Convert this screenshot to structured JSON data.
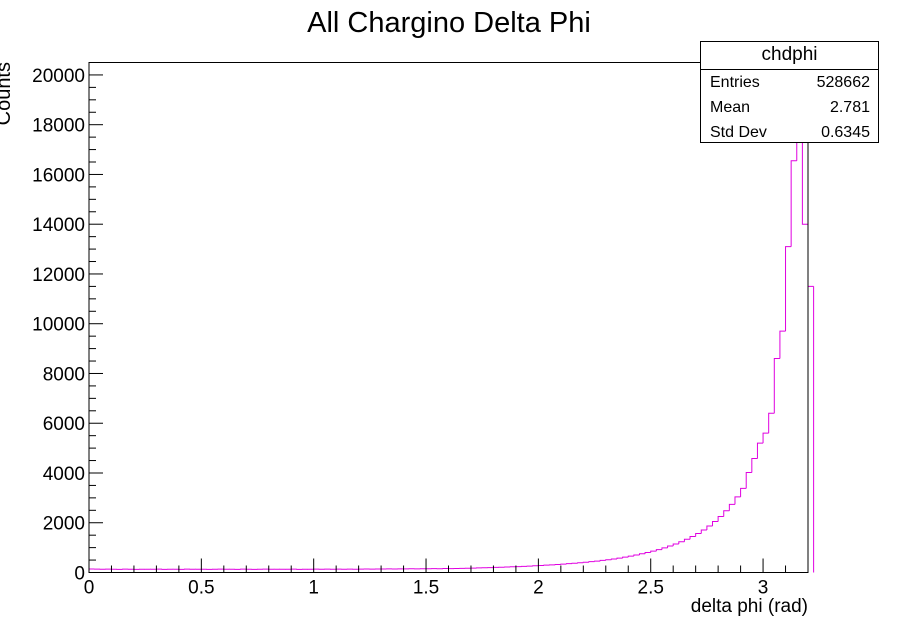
{
  "chart_data": {
    "type": "bar",
    "title": "All Chargino Delta Phi",
    "xlabel": "delta phi (rad)",
    "ylabel": "Counts",
    "xlim": [
      0,
      3.2
    ],
    "ylim": [
      0,
      20500
    ],
    "x_ticks": [
      "0",
      "0.5",
      "1",
      "1.5",
      "2",
      "2.5",
      "3"
    ],
    "y_ticks": [
      "0",
      "2000",
      "4000",
      "6000",
      "8000",
      "10000",
      "12000",
      "14000",
      "16000",
      "18000",
      "20000"
    ],
    "series_color": "#e000e0",
    "bin_edges_start": 0,
    "bin_width": 0.025,
    "values": [
      140,
      135,
      130,
      138,
      132,
      128,
      135,
      130,
      127,
      133,
      129,
      131,
      136,
      128,
      130,
      132,
      127,
      134,
      129,
      131,
      133,
      128,
      130,
      135,
      129,
      131,
      127,
      134,
      130,
      128,
      132,
      136,
      129,
      131,
      133,
      130,
      135,
      128,
      132,
      131,
      134,
      130,
      137,
      132,
      135,
      131,
      138,
      133,
      136,
      140,
      137,
      142,
      139,
      145,
      141,
      148,
      144,
      150,
      147,
      153,
      150,
      155,
      152,
      160,
      157,
      163,
      168,
      172,
      178,
      185,
      190,
      198,
      205,
      212,
      220,
      230,
      238,
      248,
      258,
      270,
      282,
      295,
      308,
      322,
      338,
      355,
      372,
      392,
      412,
      435,
      458,
      485,
      512,
      545,
      580,
      618,
      660,
      705,
      752,
      805,
      860,
      920,
      990,
      1065,
      1145,
      1235,
      1335,
      1445,
      1570,
      1710,
      1870,
      2050,
      2250,
      2480,
      2740,
      3040,
      3380,
      4020,
      4580,
      5200,
      5600,
      6400,
      8600,
      9700,
      13100,
      16550,
      18100,
      14000,
      11500
    ]
  },
  "stats": {
    "name": "chdphi",
    "rows": [
      {
        "key": "Entries",
        "value": "528662"
      },
      {
        "key": "Mean",
        "value": "2.781"
      },
      {
        "key": "Std Dev",
        "value": "0.6345"
      }
    ]
  }
}
